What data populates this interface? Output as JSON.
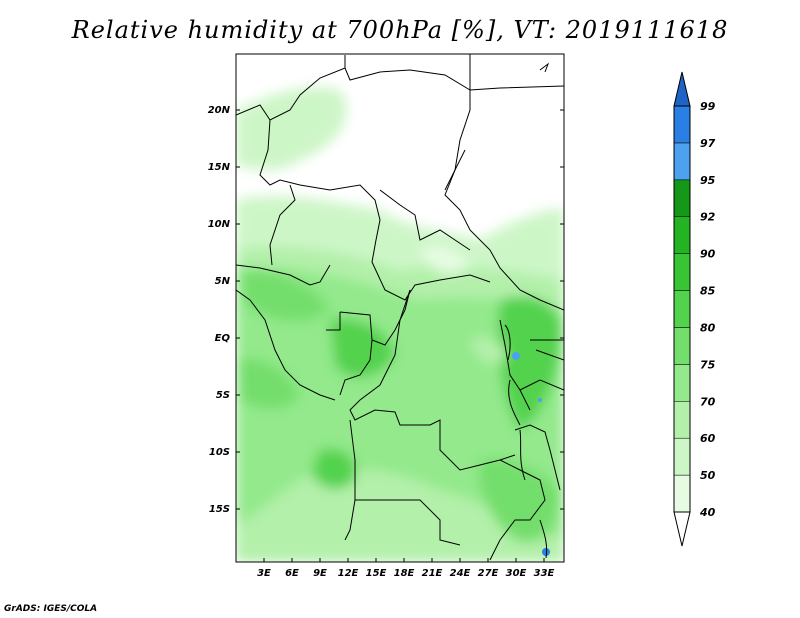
{
  "title": "Relative humidity at 700hPa [%], VT: 2019111618",
  "credit": "GrADS: IGES/COLA",
  "map": {
    "lat_ticks": [
      "20N",
      "15N",
      "10N",
      "5N",
      "EQ",
      "5S",
      "10S",
      "15S"
    ],
    "lon_ticks": [
      "3E",
      "6E",
      "9E",
      "12E",
      "15E",
      "18E",
      "21E",
      "24E",
      "27E",
      "30E",
      "33E"
    ]
  },
  "colorbar": {
    "levels": [
      "40",
      "50",
      "60",
      "70",
      "75",
      "80",
      "85",
      "90",
      "92",
      "95",
      "97",
      "99"
    ],
    "colors": [
      "#ffffff",
      "#e6fbe2",
      "#cdf6c7",
      "#b3f0aa",
      "#93e98b",
      "#73de6c",
      "#53d24e",
      "#39c436",
      "#24b322",
      "#15981a",
      "#4ca2ee",
      "#2a7fe4",
      "#1e64c6"
    ]
  }
}
